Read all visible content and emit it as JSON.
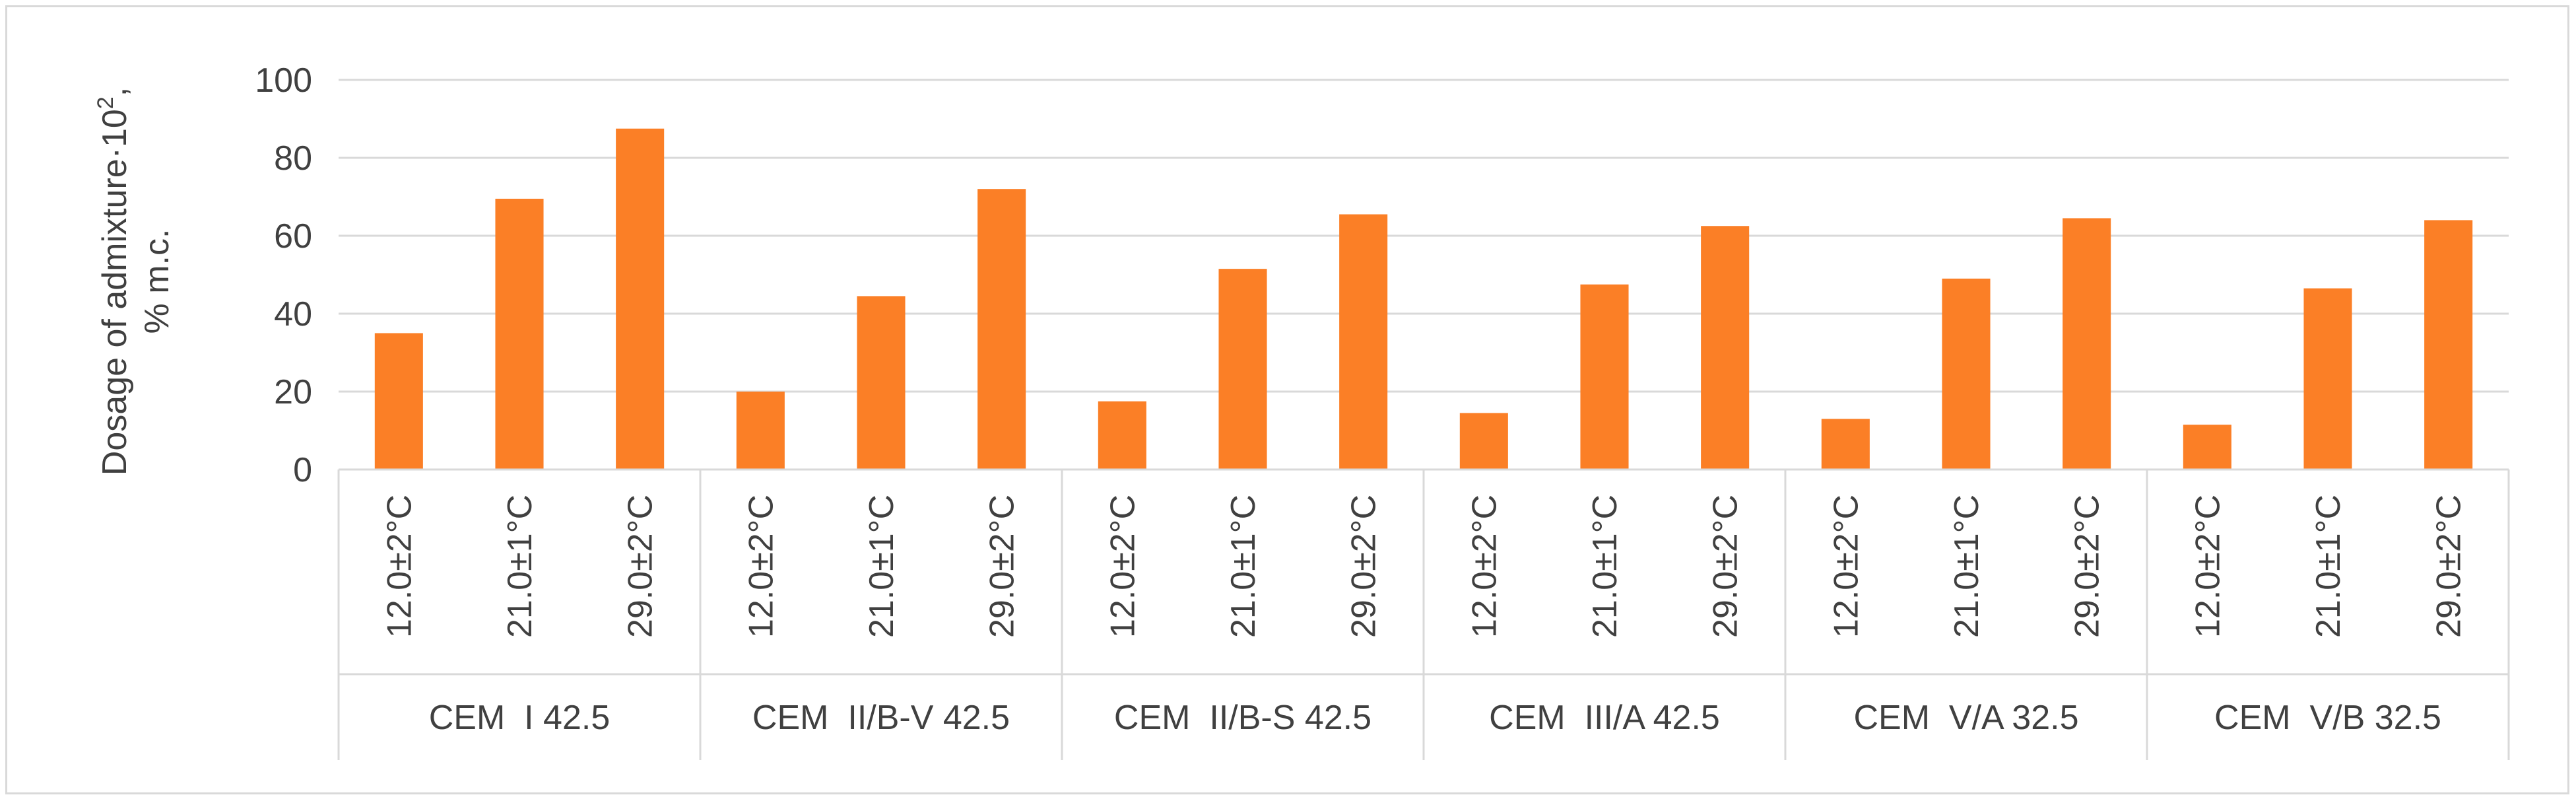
{
  "chart_data": {
    "type": "bar",
    "title": "",
    "ylabel_line1": "Dosage of admixture·10",
    "ylabel_sup": "2",
    "ylabel_line1_end": ",",
    "ylabel_line2": "% m.c.",
    "ylim": [
      0,
      100
    ],
    "yticks": [
      0,
      20,
      40,
      60,
      80,
      100
    ],
    "grid": true,
    "bar_color": "#fb7f26",
    "groups": [
      {
        "name": "CEM  I 42.5",
        "categories": [
          "12.0±2°C",
          "21.0±1°C",
          "29.0±2°C"
        ],
        "values": [
          35,
          69.5,
          87.5
        ]
      },
      {
        "name": "CEM  II/B-V 42.5",
        "categories": [
          "12.0±2°C",
          "21.0±1°C",
          "29.0±2°C"
        ],
        "values": [
          20,
          44.5,
          72
        ]
      },
      {
        "name": "CEM  II/B-S 42.5",
        "categories": [
          "12.0±2°C",
          "21.0±1°C",
          "29.0±2°C"
        ],
        "values": [
          17.5,
          51.5,
          65.5
        ]
      },
      {
        "name": "CEM  III/A 42.5",
        "categories": [
          "12.0±2°C",
          "21.0±1°C",
          "29.0±2°C"
        ],
        "values": [
          14.5,
          47.5,
          62.5
        ]
      },
      {
        "name": "CEM  V/A 32.5",
        "categories": [
          "12.0±2°C",
          "21.0±1°C",
          "29.0±2°C"
        ],
        "values": [
          13,
          49,
          64.5
        ]
      },
      {
        "name": "CEM  V/B 32.5",
        "categories": [
          "12.0±2°C",
          "21.0±1°C",
          "29.0±2°C"
        ],
        "values": [
          11.5,
          46.5,
          64
        ]
      }
    ]
  }
}
